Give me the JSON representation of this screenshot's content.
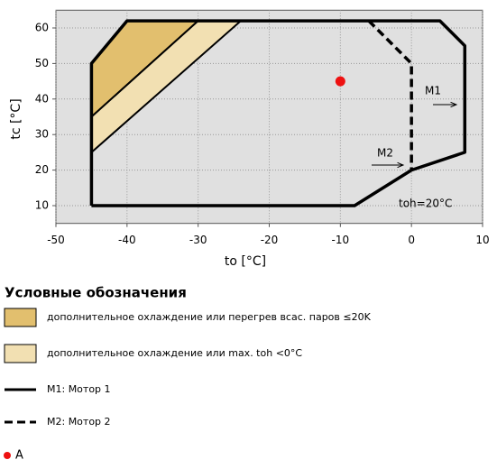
{
  "chart_data": {
    "type": "line",
    "xlabel": "to [°C]",
    "ylabel": "tc [°C]",
    "xlim": [
      -50,
      10
    ],
    "ylim": [
      5,
      65
    ],
    "xticks": [
      -50,
      -40,
      -30,
      -20,
      -10,
      0,
      10
    ],
    "yticks": [
      10,
      20,
      30,
      40,
      50,
      60
    ],
    "grid": true,
    "background": "#e0e0e0",
    "legend_title": "Условные обозначения",
    "series": [
      {
        "name": "дополнительное охлаждение или перегрев всас. паров ≤20K",
        "kind": "area",
        "color": "#e2bf6e",
        "x": [
          -45,
          -40,
          -30,
          -45
        ],
        "y": [
          50,
          62,
          62,
          35
        ]
      },
      {
        "name": "дополнительное охлаждение или max. toh <0°C",
        "kind": "area",
        "color": "#f2e0b2",
        "x": [
          -45,
          -30,
          -24,
          -45
        ],
        "y": [
          35,
          62,
          62,
          25
        ]
      },
      {
        "name": "M1: Мотор 1",
        "kind": "line",
        "color": "#000000",
        "dashed": false,
        "x": [
          -45,
          -8,
          0,
          7.5,
          7.5,
          4,
          -40,
          -45,
          -45
        ],
        "y": [
          10,
          10,
          20,
          25,
          55,
          62,
          62,
          50,
          10
        ]
      },
      {
        "name": "M2: Мотор 2",
        "kind": "line",
        "color": "#000000",
        "dashed": true,
        "x": [
          -6,
          0,
          0
        ],
        "y": [
          62,
          50,
          20
        ]
      },
      {
        "name": "A",
        "kind": "point",
        "color": "#ee1111",
        "x": [
          -10
        ],
        "y": [
          45
        ]
      }
    ],
    "annotations": [
      "M1",
      "M2",
      "toh=20°C"
    ]
  }
}
